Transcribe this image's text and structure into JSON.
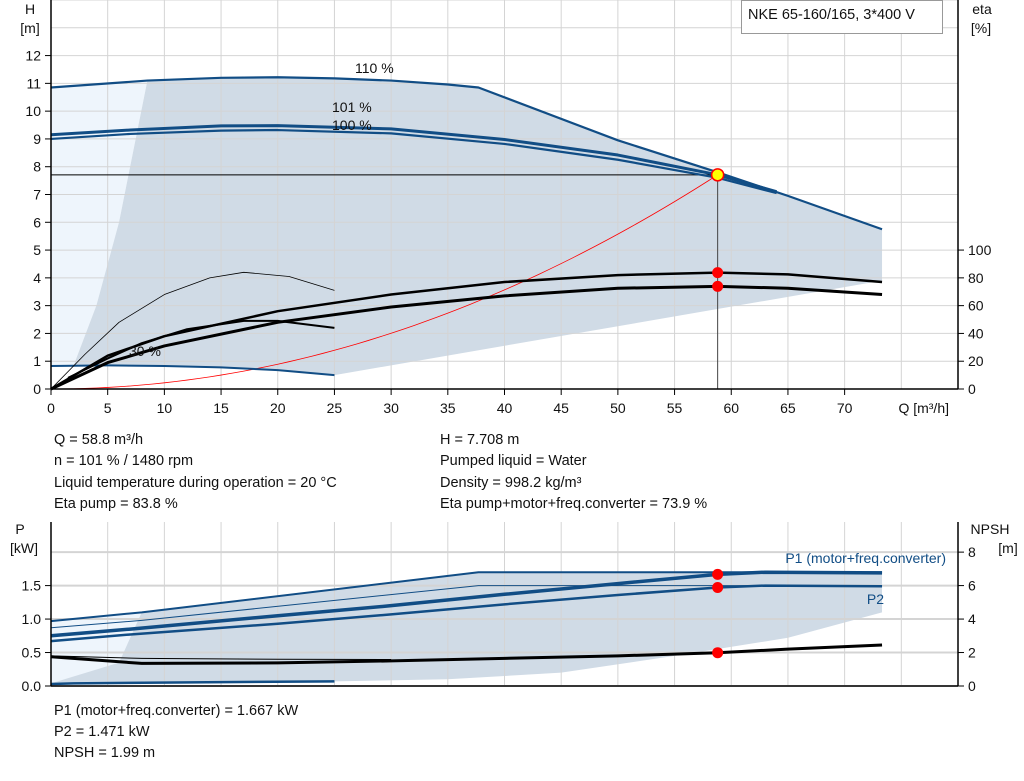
{
  "legend_box": "NKE 65-160/165, 3*400 V",
  "info_left": [
    "Q = 58.8 m³/h",
    "n = 101 % / 1480 rpm",
    "Liquid temperature during operation = 20 °C",
    "Eta pump = 83.8 %"
  ],
  "info_right": [
    "H = 7.708 m",
    "Pumped liquid = Water",
    "Density = 998.2 kg/m³",
    "Eta pump+motor+freq.converter = 73.9 %"
  ],
  "info_bottom": [
    "P1 (motor+freq.converter) = 1.667 kW",
    "P2 = 1.471 kW",
    "NPSH = 1.99 m"
  ],
  "colors": {
    "curve": "#114d85",
    "shade": "#d0dbe6",
    "shade_light": "#eef5fc",
    "eff": "#000000",
    "system": "#ff0000",
    "point": "#ff0000",
    "duty": "#ffff00"
  },
  "chart_data": [
    {
      "type": "line",
      "ylabel_left": [
        "H",
        "[m]"
      ],
      "ylabel_right": [
        "eta",
        "[%]"
      ],
      "xlabel": "Q [m³/h]",
      "xlim": [
        0,
        80
      ],
      "ylim": [
        0,
        14
      ],
      "y2lim": [
        0,
        280
      ],
      "xticks": [
        0,
        5,
        10,
        15,
        20,
        25,
        30,
        35,
        40,
        45,
        50,
        55,
        60,
        65,
        70
      ],
      "yticks": [
        0,
        1,
        2,
        3,
        4,
        5,
        6,
        7,
        8,
        9,
        10,
        11,
        12
      ],
      "y2ticks": [
        0,
        20,
        40,
        60,
        80,
        100
      ],
      "grid": true,
      "duty_point": {
        "Q": 58.8,
        "H": 7.708,
        "eta_pump": 83.8,
        "eta_total": 73.9
      },
      "series": [
        {
          "name": "110 %",
          "axis": "H",
          "width": 2.2,
          "color": "#114d85",
          "points": [
            [
              0,
              10.85
            ],
            [
              8.5,
              11.1
            ],
            [
              15,
              11.2
            ],
            [
              20,
              11.22
            ],
            [
              25,
              11.18
            ],
            [
              30,
              11.1
            ],
            [
              35,
              10.96
            ],
            [
              37.7,
              10.85
            ],
            [
              50,
              8.95
            ],
            [
              58.8,
              7.8
            ],
            [
              65,
              6.95
            ],
            [
              73.3,
              5.75
            ]
          ]
        },
        {
          "name": "101 %",
          "axis": "H",
          "width": 3,
          "color": "#114d85",
          "points": [
            [
              0,
              9.15
            ],
            [
              7,
              9.32
            ],
            [
              15,
              9.47
            ],
            [
              20,
              9.48
            ],
            [
              30,
              9.36
            ],
            [
              40,
              8.98
            ],
            [
              50,
              8.42
            ],
            [
              58.8,
              7.708
            ],
            [
              64,
              7.1
            ]
          ]
        },
        {
          "name": "100 %",
          "axis": "H",
          "width": 2.2,
          "color": "#114d85",
          "points": [
            [
              0,
              9.0
            ],
            [
              7,
              9.18
            ],
            [
              15,
              9.3
            ],
            [
              20,
              9.32
            ],
            [
              30,
              9.2
            ],
            [
              40,
              8.82
            ],
            [
              50,
              8.25
            ],
            [
              58.8,
              7.6
            ],
            [
              64,
              7.05
            ]
          ]
        },
        {
          "name": "30 %",
          "axis": "H",
          "width": 2,
          "color": "#114d85",
          "points": [
            [
              0,
              0.83
            ],
            [
              5,
              0.85
            ],
            [
              10,
              0.83
            ],
            [
              15,
              0.78
            ],
            [
              20,
              0.68
            ],
            [
              25,
              0.5
            ]
          ]
        },
        {
          "axis": "eta",
          "width": 2.5,
          "color": "#000000",
          "points": [
            [
              0,
              0
            ],
            [
              5,
              24
            ],
            [
              10,
              38
            ],
            [
              20,
              56
            ],
            [
              30,
              68
            ],
            [
              40,
              77
            ],
            [
              50,
              82
            ],
            [
              58.8,
              83.8
            ],
            [
              65,
              82.5
            ],
            [
              73.3,
              77
            ]
          ]
        },
        {
          "axis": "eta",
          "width": 3,
          "color": "#000000",
          "points": [
            [
              0,
              0
            ],
            [
              5,
              19
            ],
            [
              10,
              31
            ],
            [
              20,
              48
            ],
            [
              30,
              59
            ],
            [
              40,
              67
            ],
            [
              50,
              72.5
            ],
            [
              58.8,
              73.9
            ],
            [
              65,
              72.5
            ],
            [
              73.3,
              68
            ]
          ]
        },
        {
          "axis": "eta",
          "width": 0.8,
          "color": "#000000",
          "points": [
            [
              0,
              0
            ],
            [
              3,
              25
            ],
            [
              6,
              48
            ],
            [
              10,
              68
            ],
            [
              14,
              80
            ],
            [
              17,
              84
            ],
            [
              21,
              81
            ],
            [
              25,
              71
            ]
          ]
        },
        {
          "axis": "eta",
          "width": 2,
          "color": "#000000",
          "points": [
            [
              1.5,
              8
            ],
            [
              5,
              22
            ],
            [
              8,
              33
            ],
            [
              12,
              43
            ],
            [
              17,
              49
            ],
            [
              20,
              49
            ],
            [
              25,
              44
            ]
          ]
        }
      ]
    },
    {
      "type": "line",
      "ylabel_left": [
        "P",
        "[kW]"
      ],
      "ylabel_right": [
        "NPSH",
        "[m]"
      ],
      "xlim": [
        0,
        80
      ],
      "ylim": [
        0,
        2.45
      ],
      "y2lim": [
        0,
        9.8
      ],
      "yticks": [
        0.0,
        0.5,
        1.0,
        1.5
      ],
      "y2ticks": [
        0,
        2,
        4,
        6,
        8
      ],
      "grid": true,
      "duty_point": {
        "P1": 1.667,
        "P2": 1.471,
        "NPSH": 1.99
      },
      "series": [
        {
          "name": "P1 (motor+freq.converter)",
          "axis": "P",
          "width": 3.5,
          "color": "#114d85",
          "points": [
            [
              0,
              0.75
            ],
            [
              7,
              0.85
            ],
            [
              20,
              1.05
            ],
            [
              30,
              1.2
            ],
            [
              40,
              1.37
            ],
            [
              50,
              1.53
            ],
            [
              58.8,
              1.667
            ],
            [
              63,
              1.7
            ],
            [
              73.3,
              1.69
            ]
          ]
        },
        {
          "name": "P2",
          "axis": "P",
          "width": 2.5,
          "color": "#114d85",
          "points": [
            [
              0,
              0.67
            ],
            [
              7,
              0.77
            ],
            [
              20,
              0.93
            ],
            [
              30,
              1.07
            ],
            [
              40,
              1.22
            ],
            [
              50,
              1.36
            ],
            [
              58.8,
              1.471
            ],
            [
              63,
              1.5
            ],
            [
              73.3,
              1.49
            ]
          ]
        },
        {
          "axis": "P",
          "width": 2,
          "color": "#114d85",
          "points": [
            [
              0,
              0.97
            ],
            [
              8,
              1.1
            ],
            [
              37.7,
              1.7
            ],
            [
              73.3,
              1.7
            ]
          ]
        },
        {
          "axis": "P",
          "width": 1,
          "color": "#114d85",
          "points": [
            [
              0,
              0.87
            ],
            [
              8,
              0.98
            ],
            [
              37.7,
              1.5
            ],
            [
              73.3,
              1.5
            ]
          ]
        },
        {
          "axis": "P",
          "width": 2.5,
          "color": "#114d85",
          "points": [
            [
              0,
              0.03
            ],
            [
              2,
              0.04
            ],
            [
              25,
              0.07
            ]
          ]
        },
        {
          "axis": "NPSH",
          "width": 3,
          "color": "#000000",
          "points": [
            [
              0,
              1.75
            ],
            [
              8,
              1.35
            ],
            [
              20,
              1.38
            ],
            [
              30,
              1.5
            ],
            [
              40,
              1.65
            ],
            [
              50,
              1.8
            ],
            [
              58.8,
              1.99
            ],
            [
              65,
              2.2
            ],
            [
              73.3,
              2.45
            ]
          ]
        },
        {
          "axis": "NPSH",
          "width": 1,
          "color": "#000000",
          "points": [
            [
              0,
              1.8
            ],
            [
              8,
              1.65
            ],
            [
              20,
              1.6
            ],
            [
              30,
              1.58
            ]
          ]
        }
      ]
    }
  ]
}
